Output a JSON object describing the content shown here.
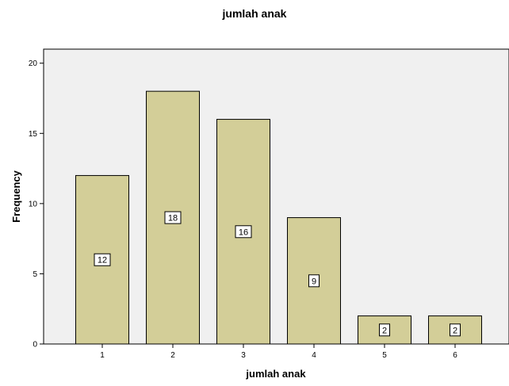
{
  "chart_data": {
    "type": "bar",
    "title": "jumlah anak",
    "xlabel": "jumlah anak",
    "ylabel": "Frequency",
    "categories": [
      "1",
      "2",
      "3",
      "4",
      "5",
      "6"
    ],
    "values": [
      12,
      18,
      16,
      9,
      2,
      2
    ],
    "data_labels": [
      "12",
      "18",
      "16",
      "9",
      "2",
      "2"
    ],
    "ylim": [
      0,
      21
    ],
    "yticks": [
      0,
      5,
      10,
      15,
      20
    ],
    "ytick_labels": [
      "0",
      "5",
      "10",
      "15",
      "20"
    ],
    "grid": false,
    "legend": "none",
    "colors": {
      "bar_fill": "#d3ce98",
      "bar_stroke": "#000000",
      "plot_background": "#f0f0f0",
      "label_box": "#ffffff"
    }
  }
}
